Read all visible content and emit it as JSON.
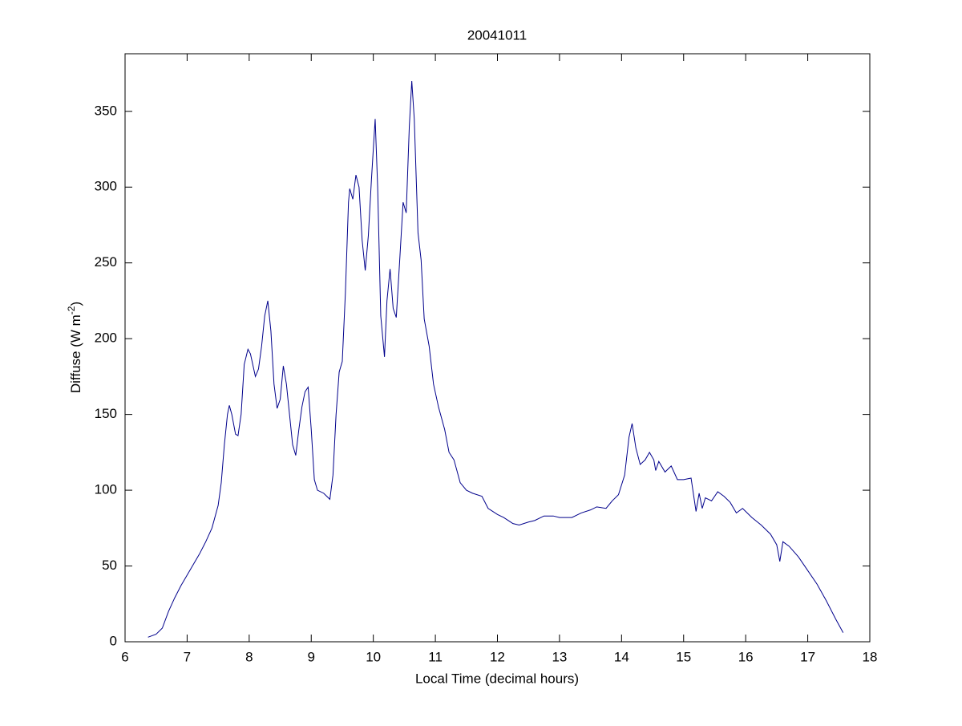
{
  "chart_data": {
    "type": "line",
    "title": "20041011",
    "xlabel": "Local Time (decimal hours)",
    "ylabel": {
      "text": "Diffuse (W m",
      "sup": "-2",
      "tail": ")"
    },
    "xlim": [
      6,
      18
    ],
    "ylim": [
      0,
      388
    ],
    "xticks": [
      6,
      7,
      8,
      9,
      10,
      11,
      12,
      13,
      14,
      15,
      16,
      17,
      18
    ],
    "yticks": [
      0,
      50,
      100,
      150,
      200,
      250,
      300,
      350
    ],
    "grid": false,
    "x": [
      6.37,
      6.5,
      6.6,
      6.7,
      6.8,
      6.9,
      7.0,
      7.1,
      7.2,
      7.3,
      7.4,
      7.5,
      7.55,
      7.6,
      7.65,
      7.68,
      7.72,
      7.78,
      7.82,
      7.87,
      7.92,
      7.98,
      8.02,
      8.1,
      8.15,
      8.2,
      8.25,
      8.3,
      8.35,
      8.4,
      8.45,
      8.5,
      8.55,
      8.6,
      8.7,
      8.75,
      8.8,
      8.85,
      8.9,
      8.95,
      9.0,
      9.05,
      9.1,
      9.2,
      9.3,
      9.35,
      9.4,
      9.45,
      9.5,
      9.55,
      9.6,
      9.62,
      9.67,
      9.72,
      9.77,
      9.82,
      9.87,
      9.92,
      9.97,
      10.03,
      10.07,
      10.12,
      10.18,
      10.22,
      10.27,
      10.32,
      10.37,
      10.43,
      10.48,
      10.53,
      10.58,
      10.62,
      10.66,
      10.72,
      10.77,
      10.82,
      10.9,
      10.97,
      11.05,
      11.15,
      11.22,
      11.3,
      11.4,
      11.5,
      11.6,
      11.75,
      11.85,
      12.0,
      12.1,
      12.25,
      12.35,
      12.5,
      12.6,
      12.75,
      12.9,
      13.0,
      13.2,
      13.35,
      13.5,
      13.6,
      13.75,
      13.85,
      13.95,
      14.05,
      14.12,
      14.17,
      14.23,
      14.3,
      14.38,
      14.45,
      14.52,
      14.55,
      14.6,
      14.7,
      14.8,
      14.9,
      15.0,
      15.12,
      15.2,
      15.25,
      15.3,
      15.35,
      15.45,
      15.55,
      15.65,
      15.75,
      15.85,
      15.95,
      16.1,
      16.25,
      16.4,
      16.5,
      16.55,
      16.6,
      16.7,
      16.85,
      17.0,
      17.15,
      17.3,
      17.45,
      17.57
    ],
    "series": [
      {
        "color": "#00008b",
        "values": [
          3,
          5,
          9,
          20,
          29,
          37,
          44,
          51,
          58,
          66,
          75,
          90,
          105,
          130,
          150,
          156,
          150,
          137,
          136,
          150,
          183,
          193,
          190,
          175,
          180,
          195,
          215,
          225,
          205,
          170,
          154,
          160,
          182,
          170,
          130,
          123,
          140,
          155,
          165,
          168,
          140,
          107,
          100,
          98,
          94,
          110,
          150,
          178,
          185,
          230,
          290,
          299,
          292,
          308,
          300,
          265,
          245,
          268,
          305,
          345,
          300,
          215,
          188,
          225,
          246,
          220,
          214,
          255,
          290,
          283,
          340,
          370,
          345,
          270,
          252,
          213,
          195,
          170,
          155,
          140,
          125,
          120,
          105,
          100,
          98,
          96,
          88,
          84,
          82,
          78,
          77,
          79,
          80,
          83,
          83,
          82,
          82,
          85,
          87,
          89,
          88,
          93,
          97,
          110,
          135,
          144,
          128,
          117,
          120,
          125,
          120,
          113,
          119,
          112,
          116,
          107,
          107,
          108,
          86,
          98,
          88,
          95,
          93,
          99,
          96,
          92,
          85,
          88,
          82,
          77,
          71,
          64,
          53,
          66,
          63,
          56,
          47,
          38,
          27,
          15,
          6
        ]
      }
    ]
  }
}
